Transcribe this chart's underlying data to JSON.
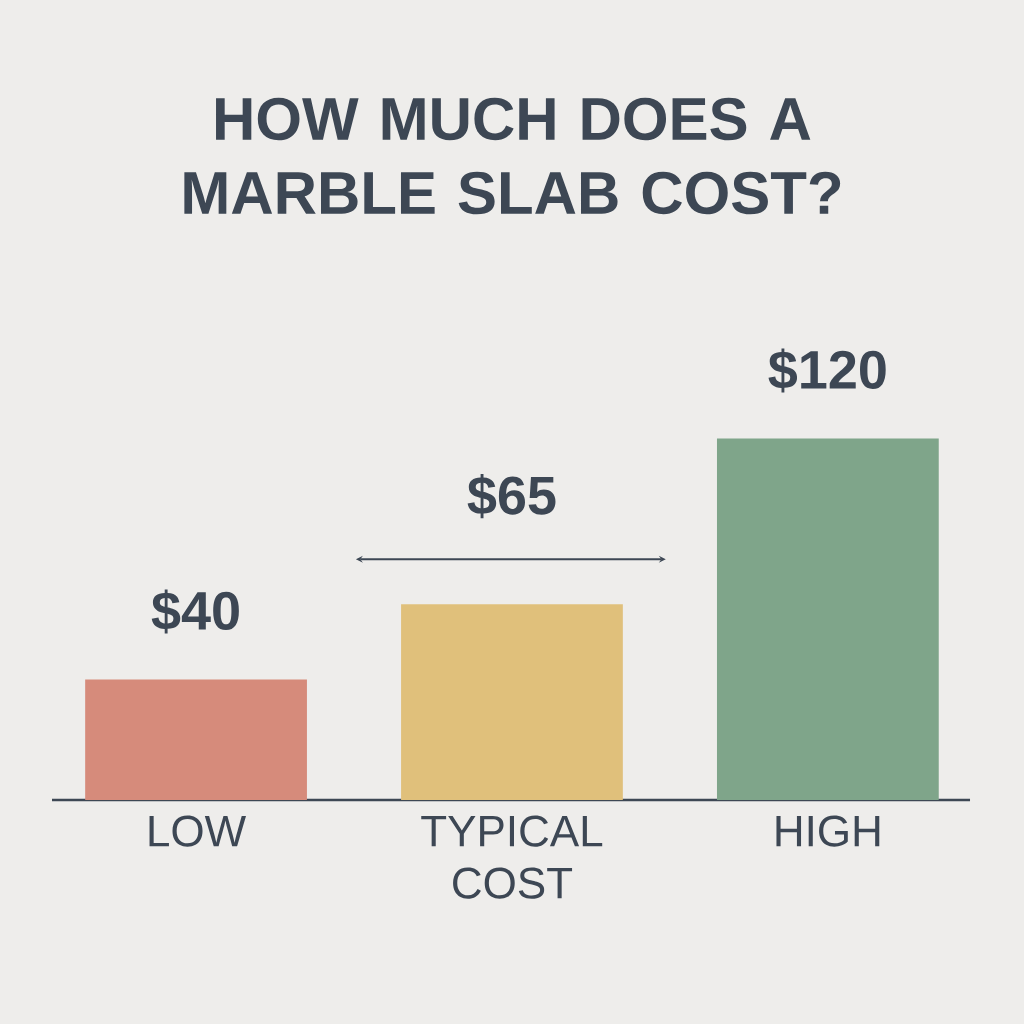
{
  "chart_data": {
    "type": "bar",
    "title": "HOW MUCH DOES A MARBLE SLAB COST?",
    "categories": [
      "LOW",
      "TYPICAL COST",
      "HIGH"
    ],
    "values": [
      40,
      65,
      120
    ],
    "colors": [
      "#d68b7b",
      "#e0c07b",
      "#7fa58a"
    ],
    "value_labels": [
      "$40",
      "$65",
      "$120"
    ]
  }
}
